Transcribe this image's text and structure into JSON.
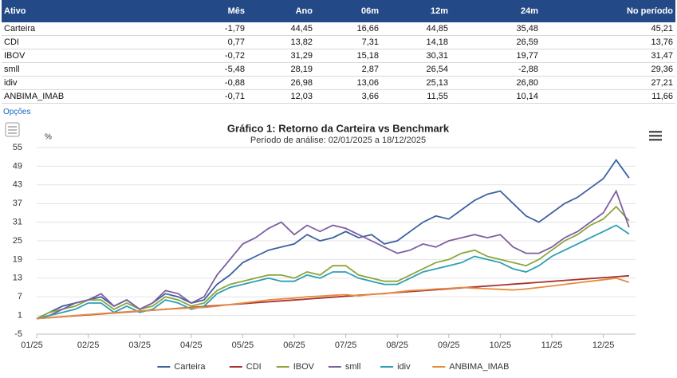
{
  "table": {
    "header": [
      "Ativo",
      "Mês",
      "Ano",
      "06m",
      "12m",
      "24m",
      "No período"
    ],
    "rows": [
      [
        "Carteira",
        "-1,79",
        "44,45",
        "16,66",
        "44,85",
        "35,48",
        "45,21"
      ],
      [
        "CDI",
        "0,77",
        "13,82",
        "7,31",
        "14,18",
        "26,59",
        "13,76"
      ],
      [
        "IBOV",
        "-0,72",
        "31,29",
        "15,18",
        "30,31",
        "19,77",
        "31,47"
      ],
      [
        "smll",
        "-5,48",
        "28,19",
        "2,87",
        "26,54",
        "-2,88",
        "29,36"
      ],
      [
        "idiv",
        "-0,88",
        "26,98",
        "13,06",
        "25,13",
        "26,80",
        "27,21"
      ],
      [
        "ANBIMA_IMAB",
        "-0,71",
        "12,03",
        "3,66",
        "11,55",
        "10,14",
        "11,66"
      ]
    ],
    "options_link": "Opções"
  },
  "chart_data": {
    "type": "line",
    "title": "Gráfico 1: Retorno da Carteira vs Benchmark",
    "subtitle": "Período de análise: 02/01/2025 a 18/12/2025",
    "y_label": "%",
    "categories": [
      "01/25",
      null,
      null,
      null,
      "02/25",
      null,
      null,
      null,
      "03/25",
      null,
      null,
      null,
      "04/25",
      null,
      null,
      null,
      "05/25",
      null,
      null,
      null,
      "06/25",
      null,
      null,
      null,
      "07/25",
      null,
      null,
      null,
      "08/25",
      null,
      null,
      null,
      "09/25",
      null,
      null,
      null,
      "10/25",
      null,
      null,
      null,
      "11/25",
      null,
      null,
      null,
      "12/25",
      null,
      null
    ],
    "series": [
      {
        "name": "Carteira",
        "color": "#3d62a0",
        "values": [
          0,
          2,
          4,
          5,
          6,
          7,
          4,
          6,
          3,
          5,
          8,
          7,
          5,
          6,
          11,
          14,
          18,
          20,
          22,
          23,
          24,
          27,
          25,
          26,
          28,
          26,
          27,
          24,
          25,
          28,
          31,
          33,
          32,
          35,
          38,
          40,
          41,
          37,
          33,
          31,
          34,
          37,
          39,
          42,
          45,
          51,
          45.21
        ]
      },
      {
        "name": "CDI",
        "color": "#a83434",
        "values": [
          0,
          0.3,
          0.6,
          0.9,
          1.2,
          1.5,
          1.79,
          2.09,
          2.39,
          2.69,
          2.99,
          3.29,
          3.59,
          3.89,
          4.19,
          4.49,
          4.79,
          5.09,
          5.38,
          5.68,
          5.98,
          6.28,
          6.58,
          6.88,
          7.18,
          7.48,
          7.78,
          8.08,
          8.38,
          8.68,
          8.97,
          9.27,
          9.57,
          9.87,
          10.17,
          10.47,
          10.77,
          11.07,
          11.37,
          11.67,
          11.97,
          12.27,
          12.56,
          12.86,
          13.16,
          13.46,
          13.76
        ]
      },
      {
        "name": "IBOV",
        "color": "#8ba63c",
        "values": [
          0,
          2,
          3,
          4,
          6,
          6,
          3,
          5,
          3,
          4,
          7,
          6,
          4,
          5,
          9,
          11,
          12,
          13,
          14,
          14,
          13,
          15,
          14,
          17,
          17,
          14,
          13,
          12,
          12,
          14,
          16,
          18,
          19,
          21,
          22,
          20,
          19,
          18,
          17,
          19,
          22,
          25,
          27,
          30,
          32,
          36,
          31.47
        ]
      },
      {
        "name": "smll",
        "color": "#7e5fa0",
        "values": [
          0,
          1,
          3,
          5,
          6,
          8,
          4,
          6,
          3,
          5,
          9,
          8,
          5,
          7,
          14,
          19,
          24,
          26,
          29,
          31,
          27,
          30,
          28,
          30,
          29,
          27,
          25,
          23,
          21,
          22,
          24,
          23,
          25,
          26,
          27,
          26,
          27,
          23,
          21,
          21,
          23,
          26,
          28,
          31,
          34,
          41,
          29.36
        ]
      },
      {
        "name": "idiv",
        "color": "#2e9fb4",
        "values": [
          0,
          1,
          2,
          3,
          5,
          5,
          2,
          4,
          2,
          3,
          6,
          5,
          3,
          4,
          8,
          10,
          11,
          12,
          13,
          12,
          12,
          14,
          13,
          15,
          15,
          13,
          12,
          11,
          11,
          13,
          15,
          16,
          17,
          18,
          20,
          19,
          18,
          16,
          15,
          17,
          20,
          22,
          24,
          26,
          28,
          30,
          27.21
        ]
      },
      {
        "name": "ANBIMA_IMAB",
        "color": "#e88b3e",
        "values": [
          0,
          0.3,
          0.6,
          1,
          1.3,
          1.6,
          1.9,
          2.2,
          2.5,
          2.7,
          3,
          3.2,
          3.4,
          3.6,
          4,
          4.5,
          5,
          5.5,
          6,
          6.3,
          6.6,
          7,
          7.2,
          7.5,
          7.7,
          7.3,
          7.8,
          8,
          8.5,
          9,
          9.2,
          9.5,
          9.7,
          10,
          9.8,
          9.6,
          9.4,
          9.2,
          9.5,
          10,
          10.5,
          11,
          11.5,
          12,
          12.5,
          13,
          11.66
        ]
      }
    ],
    "ylim": [
      -5,
      55
    ],
    "yticks": [
      -5,
      1,
      7,
      13,
      19,
      25,
      31,
      37,
      43,
      49,
      55
    ],
    "grid": true
  }
}
